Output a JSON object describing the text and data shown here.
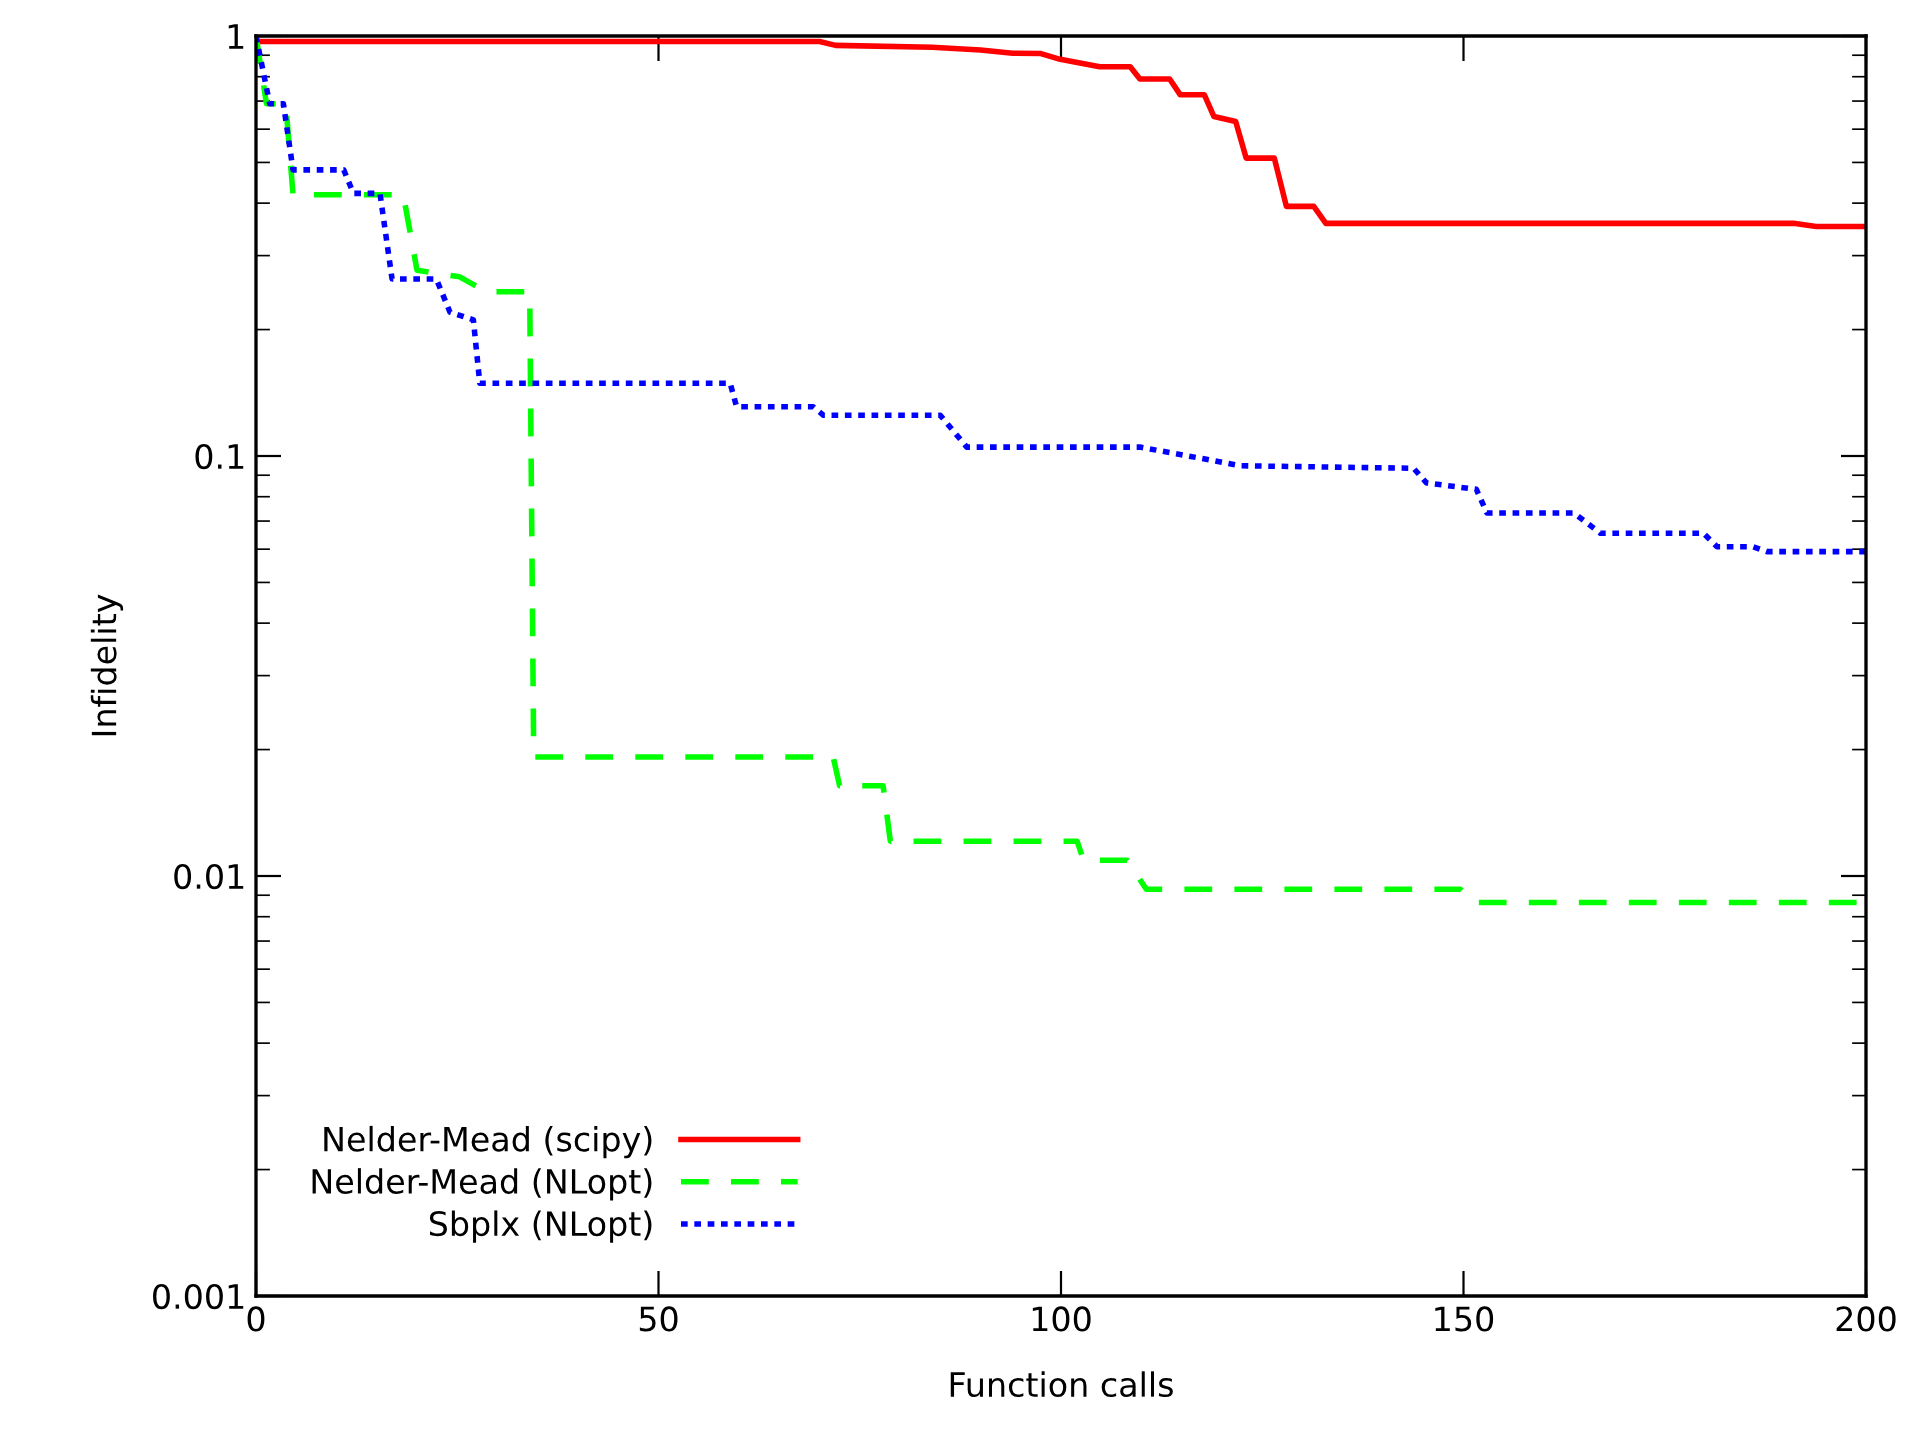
{
  "chart_data": {
    "type": "line",
    "xlabel": "Function calls",
    "ylabel": "Infidelity",
    "log": "y",
    "xlim": [
      0,
      200
    ],
    "xticks": [
      0,
      50,
      100,
      150,
      200
    ],
    "ylim": [
      0.001,
      1
    ],
    "yticks": [
      0.001,
      0.01,
      0.1,
      1
    ],
    "grid": false,
    "legend": "bottom left",
    "marker": "none",
    "series": [
      {
        "name": "Nelder-Mead (scipy)",
        "color": "#ff0000",
        "line_style": "solid",
        "x": [
          0,
          70,
          72,
          84,
          90,
          94,
          97.4,
          99.9,
          104.8,
          108.6,
          109.8,
          113.5,
          114.8,
          117.8,
          119,
          121.7,
          123,
          126.5,
          128,
          131.4,
          132.9,
          191,
          193.8,
          200
        ],
        "values": [
          0.97,
          0.97,
          0.95,
          0.94,
          0.926,
          0.91,
          0.909,
          0.88,
          0.845,
          0.845,
          0.79,
          0.79,
          0.725,
          0.725,
          0.643,
          0.626,
          0.512,
          0.512,
          0.393,
          0.393,
          0.358,
          0.358,
          0.352,
          0.352
        ]
      },
      {
        "name": "Nelder-Mead (NLopt)",
        "color": "#00ff00",
        "line_style": "dashed",
        "x": [
          0,
          1.3,
          3.7,
          4.6,
          18.3,
          20,
          25.3,
          28.6,
          34,
          34.5,
          71.7,
          72.5,
          77.9,
          78.8,
          102,
          102.8,
          108.2,
          110.6,
          149.6,
          151.2,
          200
        ],
        "values": [
          1,
          0.69,
          0.69,
          0.419,
          0.419,
          0.277,
          0.267,
          0.246,
          0.246,
          0.0192,
          0.0192,
          0.0164,
          0.0164,
          0.0121,
          0.0121,
          0.0109,
          0.0109,
          0.0093,
          0.0093,
          0.00865,
          0.00865
        ]
      },
      {
        "name": "Sbplx (NLopt)",
        "color": "#0000ff",
        "line_style": "dotted",
        "x": [
          0,
          1.7,
          3.4,
          4.6,
          10.9,
          12.1,
          15.4,
          16.9,
          22.4,
          24.1,
          27,
          27.8,
          58.9,
          59.7,
          69.2,
          70.5,
          85,
          88.3,
          109.8,
          117.3,
          122.2,
          143.8,
          145.4,
          151.6,
          152.9,
          163.7,
          167,
          179.8,
          181.5,
          186,
          187.7,
          200
        ],
        "values": [
          1,
          0.69,
          0.69,
          0.48,
          0.48,
          0.422,
          0.422,
          0.264,
          0.264,
          0.22,
          0.211,
          0.149,
          0.149,
          0.131,
          0.131,
          0.125,
          0.125,
          0.105,
          0.105,
          0.0988,
          0.0948,
          0.0935,
          0.0863,
          0.0833,
          0.0732,
          0.0732,
          0.0655,
          0.0655,
          0.0608,
          0.0608,
          0.0592,
          0.0592
        ]
      }
    ]
  }
}
